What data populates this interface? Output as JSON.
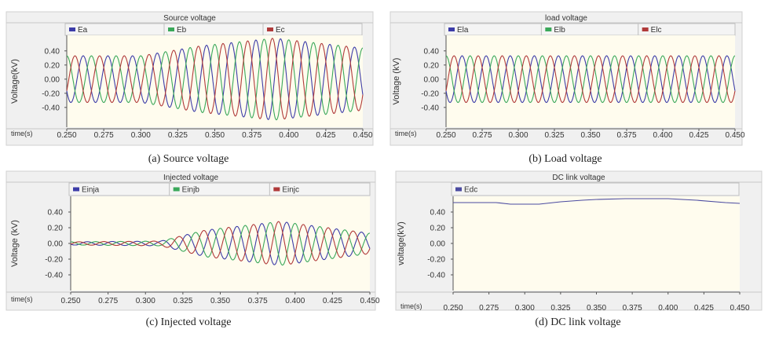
{
  "chart_data": [
    {
      "type": "line",
      "title": "Source voltage",
      "caption": "(a) Source voltage",
      "xlabel": "time(s)",
      "ylabel": "Voltage(kV)",
      "xlim": [
        0.25,
        0.45
      ],
      "ylim": [
        -0.68,
        0.62
      ],
      "xticks": [
        "0.250",
        "0.275",
        "0.300",
        "0.325",
        "0.350",
        "0.375",
        "0.400",
        "0.425",
        "0.450"
      ],
      "yticks": [
        "0.40",
        "0.20",
        "0.00",
        "-0.20",
        "-0.40"
      ],
      "frequency_hz": 60,
      "amplitude_envelope": {
        "t": [
          0.25,
          0.3,
          0.34,
          0.39,
          0.45
        ],
        "kv": [
          0.33,
          0.33,
          0.47,
          0.58,
          0.44
        ]
      },
      "series": [
        {
          "name": "Ea",
          "color": "#3c3ca8",
          "phase_deg": 120
        },
        {
          "name": "Eb",
          "color": "#3aa85a",
          "phase_deg": 0
        },
        {
          "name": "Ec",
          "color": "#b03a3a",
          "phase_deg": -120
        }
      ]
    },
    {
      "type": "line",
      "title": "load voltage",
      "caption": "(b) Load voltage",
      "xlabel": "time(s)",
      "ylabel": "Voltage (kV)",
      "xlim": [
        0.25,
        0.45
      ],
      "ylim": [
        -0.68,
        0.62
      ],
      "xticks": [
        "0.250",
        "0.275",
        "0.300",
        "0.325",
        "0.350",
        "0.375",
        "0.400",
        "0.425",
        "0.450"
      ],
      "yticks": [
        "0.40",
        "0.20",
        "0.00",
        "-0.20",
        "-0.40"
      ],
      "frequency_hz": 60,
      "amplitude_envelope": {
        "t": [
          0.25,
          0.45
        ],
        "kv": [
          0.33,
          0.33
        ]
      },
      "series": [
        {
          "name": "Ela",
          "color": "#3c3ca8",
          "phase_deg": 120
        },
        {
          "name": "Elb",
          "color": "#3aa85a",
          "phase_deg": 0
        },
        {
          "name": "Elc",
          "color": "#b03a3a",
          "phase_deg": -120
        }
      ]
    },
    {
      "type": "line",
      "title": "Injected voltage",
      "caption": "(c) Injected voltage",
      "xlabel": "time(s)",
      "ylabel": "Voltage (kV)",
      "xlim": [
        0.25,
        0.45
      ],
      "ylim": [
        -0.6,
        0.6
      ],
      "xticks": [
        "0.250",
        "0.275",
        "0.300",
        "0.325",
        "0.350",
        "0.375",
        "0.400",
        "0.425",
        "0.450"
      ],
      "yticks": [
        "0.40",
        "0.20",
        "0.00",
        "-0.20",
        "-0.40"
      ],
      "frequency_hz": 60,
      "amplitude_envelope": {
        "t": [
          0.25,
          0.31,
          0.34,
          0.39,
          0.45
        ],
        "kv": [
          0.02,
          0.03,
          0.17,
          0.28,
          0.13
        ]
      },
      "series": [
        {
          "name": "Einja",
          "color": "#3c3ca8",
          "phase_deg": 120
        },
        {
          "name": "Einjb",
          "color": "#3aa85a",
          "phase_deg": 0
        },
        {
          "name": "Einjc",
          "color": "#b03a3a",
          "phase_deg": -120
        }
      ]
    },
    {
      "type": "line",
      "title": "DC link voltage",
      "caption": "(d) DC link voltage",
      "xlabel": "time(s)",
      "ylabel": "voltage(kV)",
      "xlim": [
        0.25,
        0.45
      ],
      "ylim": [
        -0.6,
        0.6
      ],
      "xticks": [
        "0.250",
        "0.275",
        "0.300",
        "0.325",
        "0.350",
        "0.375",
        "0.400",
        "0.425",
        "0.450"
      ],
      "yticks": [
        "0.40",
        "0.20",
        "0.00",
        "-0.20",
        "-0.40"
      ],
      "series": [
        {
          "name": "Edc",
          "color": "#4a4aa0",
          "x": [
            0.25,
            0.28,
            0.29,
            0.31,
            0.325,
            0.34,
            0.35,
            0.37,
            0.4,
            0.42,
            0.44,
            0.45
          ],
          "y": [
            0.52,
            0.52,
            0.5,
            0.5,
            0.53,
            0.55,
            0.56,
            0.57,
            0.57,
            0.55,
            0.52,
            0.51
          ]
        }
      ]
    }
  ]
}
